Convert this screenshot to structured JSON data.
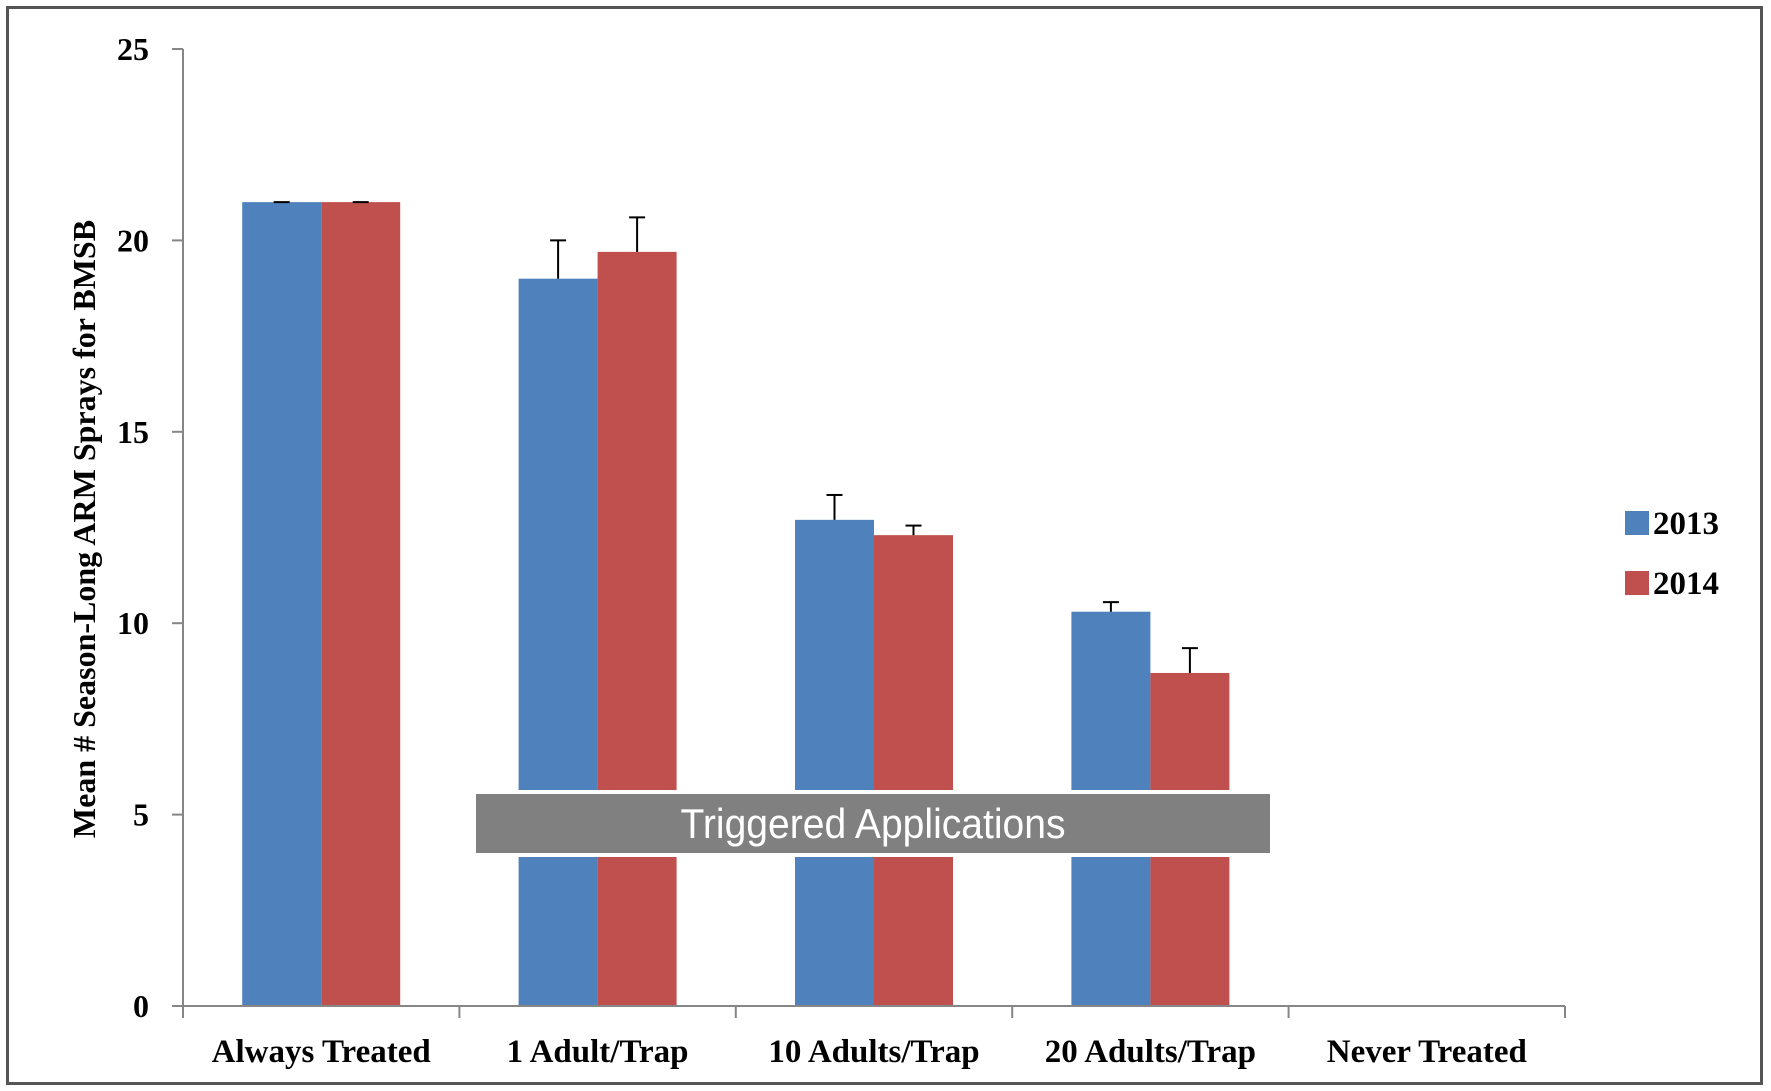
{
  "chart_data": {
    "type": "bar",
    "title": "",
    "xlabel": "",
    "ylabel": "Mean # Season-Long ARM Sprays for BMSB",
    "ylim": [
      0,
      25
    ],
    "yticks": [
      "0",
      "5",
      "10",
      "15",
      "20",
      "25"
    ],
    "categories": [
      "Always Treated",
      "1 Adult/Trap",
      "10 Adults/Trap",
      "20 Adults/Trap",
      "Never Treated"
    ],
    "series": [
      {
        "name": "2013",
        "color": "#4F81BD",
        "values": [
          21,
          19,
          12.7,
          10.3,
          0
        ],
        "error": [
          0,
          1.0,
          0.65,
          0.25,
          0
        ]
      },
      {
        "name": "2014",
        "color": "#C0504D",
        "values": [
          21,
          19.7,
          12.3,
          8.7,
          0
        ],
        "error": [
          0,
          0.9,
          0.25,
          0.65,
          0
        ]
      }
    ],
    "legend_position": "right",
    "grid": false,
    "annotation": {
      "text": "Triggered Applications",
      "color": "#808080"
    }
  }
}
